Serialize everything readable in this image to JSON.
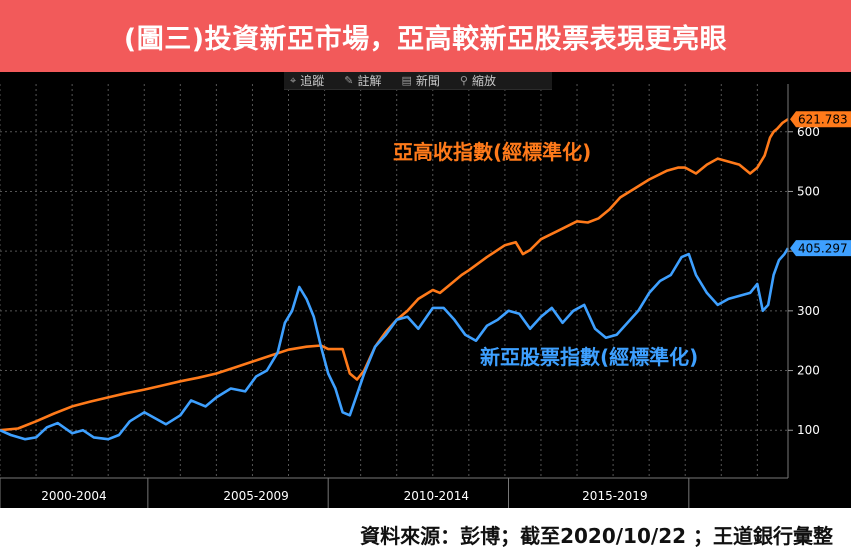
{
  "header": {
    "title": "(圖三)投資新亞市場，亞高較新亞股票表現更亮眼"
  },
  "toolbar": {
    "items": [
      {
        "label": "追蹤",
        "icon": "crosshair-icon",
        "glyph": "⌖"
      },
      {
        "label": "註解",
        "icon": "pencil-icon",
        "glyph": "✎"
      },
      {
        "label": "新聞",
        "icon": "news-icon",
        "glyph": "▤"
      },
      {
        "label": "縮放",
        "icon": "zoom-icon",
        "glyph": "⚲"
      }
    ]
  },
  "footer": {
    "source": "資料來源：彭博；截至2020/10/22 ；王道銀行彙整"
  },
  "chart_data": {
    "type": "line",
    "title": "",
    "xlabel": "",
    "ylabel": "",
    "xlim": [
      1999.0,
      2020.85
    ],
    "ylim": [
      20,
      680
    ],
    "y_ticks": [
      100,
      200,
      300,
      400,
      500,
      600
    ],
    "x_period_labels": [
      {
        "label": "2000-2004",
        "center": 2001.05
      },
      {
        "label": "2005-2009",
        "center": 2006.1
      },
      {
        "label": "2010-2014",
        "center": 2011.1
      },
      {
        "label": "2015-2019",
        "center": 2016.05
      }
    ],
    "x_separators": [
      1999.0,
      2003.1,
      2008.1,
      2013.1,
      2018.1
    ],
    "grid": true,
    "axis_position": "right",
    "colors": {
      "background": "#000000",
      "grid": "#555555",
      "axis_text": "#ffffff"
    },
    "series": [
      {
        "name": "亞高收指數(經標準化)",
        "color": "#ff7a1a",
        "last_value": "621.783",
        "x": [
          1999.0,
          1999.5,
          2000.0,
          2000.5,
          2001.0,
          2001.5,
          2002.0,
          2002.5,
          2003.0,
          2003.5,
          2004.0,
          2004.5,
          2005.0,
          2005.5,
          2006.0,
          2006.5,
          2007.0,
          2007.5,
          2007.9,
          2008.1,
          2008.3,
          2008.5,
          2008.7,
          2008.9,
          2009.1,
          2009.4,
          2009.7,
          2010.0,
          2010.3,
          2010.6,
          2011.0,
          2011.2,
          2011.5,
          2011.8,
          2012.0,
          2012.5,
          2013.0,
          2013.3,
          2013.5,
          2013.7,
          2014.0,
          2014.5,
          2015.0,
          2015.3,
          2015.6,
          2015.9,
          2016.2,
          2016.6,
          2017.0,
          2017.5,
          2017.8,
          2018.0,
          2018.3,
          2018.6,
          2018.9,
          2019.2,
          2019.5,
          2019.8,
          2020.0,
          2020.2,
          2020.35,
          2020.45,
          2020.55,
          2020.7,
          2020.85
        ],
        "y": [
          100,
          103,
          115,
          128,
          140,
          148,
          155,
          162,
          168,
          175,
          182,
          188,
          195,
          205,
          215,
          225,
          235,
          240,
          242,
          236,
          236,
          236,
          195,
          185,
          200,
          240,
          265,
          285,
          300,
          320,
          335,
          330,
          345,
          360,
          368,
          390,
          410,
          415,
          395,
          402,
          420,
          435,
          450,
          448,
          455,
          470,
          490,
          505,
          520,
          535,
          540,
          540,
          530,
          545,
          555,
          550,
          545,
          530,
          540,
          560,
          590,
          600,
          605,
          615,
          621
        ]
      },
      {
        "name": "新亞股票指數(經標準化)",
        "color": "#3ea0ff",
        "last_value": "405.297",
        "x": [
          1999.0,
          1999.3,
          1999.7,
          2000.0,
          2000.3,
          2000.6,
          2001.0,
          2001.3,
          2001.6,
          2002.0,
          2002.3,
          2002.6,
          2003.0,
          2003.3,
          2003.6,
          2004.0,
          2004.3,
          2004.7,
          2005.0,
          2005.4,
          2005.8,
          2006.1,
          2006.4,
          2006.7,
          2006.9,
          2007.1,
          2007.3,
          2007.5,
          2007.7,
          2007.9,
          2008.1,
          2008.3,
          2008.5,
          2008.7,
          2008.9,
          2009.1,
          2009.4,
          2009.7,
          2010.0,
          2010.3,
          2010.6,
          2011.0,
          2011.3,
          2011.6,
          2011.9,
          2012.2,
          2012.5,
          2012.8,
          2013.1,
          2013.4,
          2013.7,
          2014.0,
          2014.3,
          2014.6,
          2014.9,
          2015.2,
          2015.5,
          2015.8,
          2016.1,
          2016.4,
          2016.7,
          2017.0,
          2017.3,
          2017.6,
          2017.9,
          2018.1,
          2018.3,
          2018.6,
          2018.9,
          2019.2,
          2019.5,
          2019.8,
          2020.0,
          2020.15,
          2020.3,
          2020.45,
          2020.6,
          2020.75,
          2020.85
        ],
        "y": [
          100,
          92,
          85,
          88,
          105,
          112,
          95,
          100,
          88,
          85,
          92,
          115,
          130,
          120,
          110,
          125,
          150,
          140,
          155,
          170,
          165,
          190,
          200,
          230,
          280,
          300,
          340,
          320,
          290,
          240,
          195,
          170,
          130,
          125,
          160,
          195,
          240,
          260,
          285,
          290,
          270,
          305,
          305,
          285,
          260,
          250,
          275,
          285,
          300,
          295,
          270,
          290,
          305,
          280,
          300,
          310,
          270,
          255,
          260,
          280,
          300,
          330,
          350,
          360,
          390,
          395,
          360,
          330,
          310,
          320,
          325,
          330,
          345,
          300,
          310,
          360,
          385,
          395,
          405
        ]
      }
    ]
  }
}
